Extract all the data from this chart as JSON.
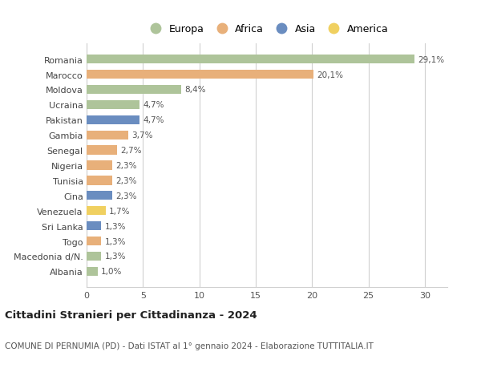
{
  "countries": [
    "Romania",
    "Marocco",
    "Moldova",
    "Ucraina",
    "Pakistan",
    "Gambia",
    "Senegal",
    "Nigeria",
    "Tunisia",
    "Cina",
    "Venezuela",
    "Sri Lanka",
    "Togo",
    "Macedonia d/N.",
    "Albania"
  ],
  "values": [
    29.1,
    20.1,
    8.4,
    4.7,
    4.7,
    3.7,
    2.7,
    2.3,
    2.3,
    2.3,
    1.7,
    1.3,
    1.3,
    1.3,
    1.0
  ],
  "labels": [
    "29,1%",
    "20,1%",
    "8,4%",
    "4,7%",
    "4,7%",
    "3,7%",
    "2,7%",
    "2,3%",
    "2,3%",
    "2,3%",
    "1,7%",
    "1,3%",
    "1,3%",
    "1,3%",
    "1,0%"
  ],
  "continents": [
    "Europa",
    "Africa",
    "Europa",
    "Europa",
    "Asia",
    "Africa",
    "Africa",
    "Africa",
    "Africa",
    "Asia",
    "America",
    "Asia",
    "Africa",
    "Europa",
    "Europa"
  ],
  "colors": {
    "Europa": "#aec49a",
    "Africa": "#e8b07a",
    "Asia": "#6a8dc0",
    "America": "#f0d060"
  },
  "legend_order": [
    "Europa",
    "Africa",
    "Asia",
    "America"
  ],
  "xlim": [
    0,
    32
  ],
  "xticks": [
    0,
    5,
    10,
    15,
    20,
    25,
    30
  ],
  "title": "Cittadini Stranieri per Cittadinanza - 2024",
  "subtitle": "COMUNE DI PERNUMIA (PD) - Dati ISTAT al 1° gennaio 2024 - Elaborazione TUTTITALIA.IT",
  "bg_color": "#ffffff",
  "grid_color": "#d0d0d0",
  "bar_height": 0.6
}
